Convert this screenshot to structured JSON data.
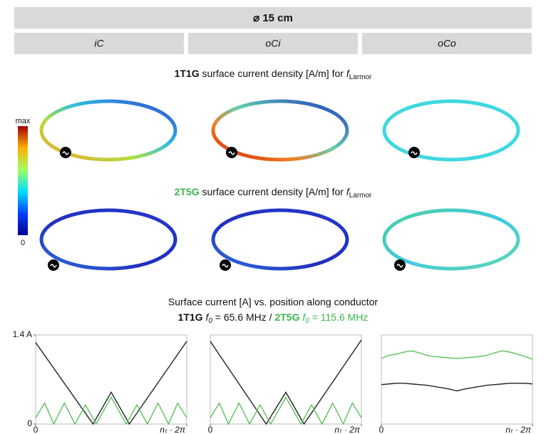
{
  "header": {
    "title": "⌀ 15 cm",
    "columns": [
      "iC",
      "oCi",
      "oCo"
    ]
  },
  "maps": [
    {
      "label": "1T1G",
      "text": "surface current density [A/m] for",
      "f": "f",
      "sub": "Larmor"
    },
    {
      "label": "2T5G",
      "text": "surface current density [A/m] for",
      "f": "f",
      "sub": "Larmor"
    }
  ],
  "colorbar": {
    "max": "max",
    "min": "0"
  },
  "caption": {
    "line1": "Surface current [A] vs. position along conductor",
    "a_label": "1T1G",
    "a_f": "f",
    "a_sub": "0",
    "a_value": "= 65.6 MHz /",
    "b_label": "2T5G",
    "b_f": "f",
    "b_sub": "0",
    "b_value": "= 115.6 MHz"
  },
  "chart_data": [
    {
      "type": "line",
      "xlim": [
        0,
        1
      ],
      "ylim": [
        0,
        1.4
      ],
      "xticks": [
        0,
        {
          "value": 1,
          "label": "nₜ · 2π"
        }
      ],
      "yticks": [
        0,
        {
          "value": 1.4,
          "label": "1.4 A"
        }
      ],
      "series": [
        {
          "name": "1T1G",
          "color": "#222222",
          "x": [
            0,
            0.38,
            0.5,
            0.62,
            1
          ],
          "values": [
            1.28,
            0,
            0.5,
            0,
            1.3
          ]
        },
        {
          "name": "2T5G",
          "color": "#5cc15c",
          "x": [
            0,
            0.06,
            0.12,
            0.19,
            0.26,
            0.33,
            0.4,
            0.5,
            0.6,
            0.67,
            0.74,
            0.81,
            0.88,
            0.94,
            1
          ],
          "values": [
            0.1,
            0.33,
            0,
            0.33,
            0,
            0.3,
            0,
            0.42,
            0,
            0.3,
            0,
            0.33,
            0,
            0.33,
            0.1
          ]
        }
      ]
    },
    {
      "type": "line",
      "xlim": [
        0,
        1
      ],
      "ylim": [
        0,
        1.4
      ],
      "xticks": [
        0,
        {
          "value": 1,
          "label": "nₜ · 2π"
        }
      ],
      "series": [
        {
          "name": "1T1G",
          "color": "#222222",
          "x": [
            0,
            0.37,
            0.5,
            0.62,
            1
          ],
          "values": [
            1.3,
            0,
            0.5,
            0,
            1.32
          ]
        },
        {
          "name": "2T5G",
          "color": "#5cc15c",
          "x": [
            0,
            0.06,
            0.12,
            0.19,
            0.26,
            0.33,
            0.4,
            0.5,
            0.6,
            0.67,
            0.74,
            0.81,
            0.88,
            0.94,
            1
          ],
          "values": [
            0.1,
            0.33,
            0,
            0.33,
            0,
            0.3,
            0,
            0.42,
            0,
            0.3,
            0,
            0.33,
            0,
            0.33,
            0.1
          ]
        }
      ]
    },
    {
      "type": "line",
      "xlim": [
        0,
        1
      ],
      "ylim": [
        0,
        1.4
      ],
      "xticks": [
        0,
        {
          "value": 1,
          "label": "nₜ · 2π"
        }
      ],
      "series": [
        {
          "name": "1T1G",
          "color": "#222222",
          "x": [
            0,
            0.05,
            0.1,
            0.15,
            0.2,
            0.25,
            0.3,
            0.35,
            0.4,
            0.45,
            0.5,
            0.55,
            0.6,
            0.65,
            0.7,
            0.75,
            0.8,
            0.85,
            0.9,
            0.95,
            1
          ],
          "values": [
            0.62,
            0.63,
            0.64,
            0.64,
            0.63,
            0.62,
            0.61,
            0.59,
            0.57,
            0.55,
            0.52,
            0.55,
            0.57,
            0.59,
            0.61,
            0.62,
            0.63,
            0.64,
            0.64,
            0.64,
            0.63
          ]
        },
        {
          "name": "2T5G",
          "color": "#5cc15c",
          "x": [
            0,
            0.05,
            0.1,
            0.15,
            0.2,
            0.25,
            0.3,
            0.35,
            0.4,
            0.45,
            0.5,
            0.55,
            0.6,
            0.65,
            0.7,
            0.75,
            0.8,
            0.85,
            0.9,
            0.95,
            1
          ],
          "values": [
            1.03,
            1.08,
            1.1,
            1.13,
            1.15,
            1.12,
            1.08,
            1.06,
            1.05,
            1.04,
            1.03,
            1.04,
            1.05,
            1.06,
            1.08,
            1.12,
            1.15,
            1.13,
            1.1,
            1.06,
            1.02
          ]
        }
      ]
    }
  ]
}
